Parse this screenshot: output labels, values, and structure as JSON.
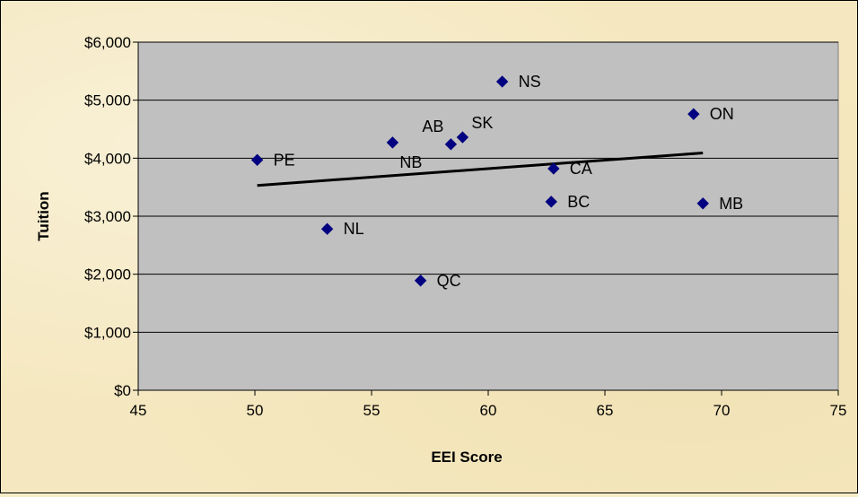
{
  "chart_data": {
    "type": "scatter",
    "xlabel": "EEI Score",
    "ylabel": "Tuition",
    "xlim": [
      45,
      75
    ],
    "ylim": [
      0,
      6000
    ],
    "x_ticks": [
      45,
      50,
      55,
      60,
      65,
      70,
      75
    ],
    "y_ticks": [
      0,
      1000,
      2000,
      3000,
      4000,
      5000,
      6000
    ],
    "x_tick_labels": [
      "45",
      "50",
      "55",
      "60",
      "65",
      "70",
      "75"
    ],
    "y_tick_labels": [
      "$0",
      "$1,000",
      "$2,000",
      "$3,000",
      "$4,000",
      "$5,000",
      "$6,000"
    ],
    "grid": "horizontal",
    "legend": "none",
    "points": [
      {
        "label": "PE",
        "x": 50.1,
        "y": 3970
      },
      {
        "label": "NL",
        "x": 53.1,
        "y": 2780
      },
      {
        "label": "NB",
        "x": 55.9,
        "y": 4270
      },
      {
        "label": "QC",
        "x": 57.1,
        "y": 1890
      },
      {
        "label": "AB",
        "x": 58.4,
        "y": 4240
      },
      {
        "label": "SK",
        "x": 58.9,
        "y": 4360
      },
      {
        "label": "NS",
        "x": 60.6,
        "y": 5320
      },
      {
        "label": "BC",
        "x": 62.7,
        "y": 3250
      },
      {
        "label": "CA",
        "x": 62.8,
        "y": 3820
      },
      {
        "label": "ON",
        "x": 68.8,
        "y": 4760
      },
      {
        "label": "MB",
        "x": 69.2,
        "y": 3220
      }
    ],
    "trendline": {
      "x": [
        50.1,
        69.2
      ],
      "y": [
        3530,
        4090
      ]
    },
    "colors": {
      "plot_background": "#c0c0c0",
      "marker": "#000080",
      "trendline": "#000000",
      "gridline": "#000000"
    }
  }
}
